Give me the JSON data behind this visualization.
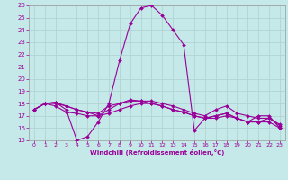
{
  "title": "",
  "xlabel": "Windchill (Refroidissement éolien,°C)",
  "background_color": "#c5e8e8",
  "grid_color": "#b0d4d4",
  "line_color": "#990099",
  "xlim": [
    -0.5,
    23.5
  ],
  "ylim": [
    15,
    26
  ],
  "yticks": [
    15,
    16,
    17,
    18,
    19,
    20,
    21,
    22,
    23,
    24,
    25,
    26
  ],
  "xticks": [
    0,
    1,
    2,
    3,
    4,
    5,
    6,
    7,
    8,
    9,
    10,
    11,
    12,
    13,
    14,
    15,
    16,
    17,
    18,
    19,
    20,
    21,
    22,
    23
  ],
  "series": [
    {
      "x": [
        0,
        1,
        2,
        3,
        4,
        5,
        6,
        7,
        8,
        9,
        10,
        11,
        12,
        13,
        14,
        15,
        16,
        17,
        18,
        19,
        20,
        21,
        22,
        23
      ],
      "y": [
        17.5,
        18.0,
        18.1,
        17.5,
        15.0,
        15.3,
        16.5,
        18.0,
        21.5,
        24.5,
        25.8,
        26.0,
        25.2,
        24.0,
        22.8,
        15.8,
        16.8,
        17.0,
        17.2,
        16.8,
        16.5,
        17.0,
        17.0,
        16.0
      ]
    },
    {
      "x": [
        0,
        1,
        2,
        3,
        4,
        5,
        6,
        7,
        8,
        9,
        10,
        11,
        12,
        13,
        14,
        15,
        16,
        17,
        18,
        19,
        20,
        21,
        22,
        23
      ],
      "y": [
        17.5,
        18.0,
        17.8,
        17.3,
        17.2,
        17.0,
        17.0,
        17.2,
        17.5,
        17.8,
        18.0,
        18.0,
        17.8,
        17.5,
        17.3,
        17.0,
        16.8,
        16.8,
        17.0,
        16.8,
        16.5,
        16.5,
        16.5,
        16.0
      ]
    },
    {
      "x": [
        0,
        1,
        2,
        3,
        4,
        5,
        6,
        7,
        8,
        9,
        10,
        11,
        12,
        13,
        14,
        15,
        16,
        17,
        18,
        19,
        20,
        21,
        22,
        23
      ],
      "y": [
        17.5,
        18.0,
        18.0,
        17.8,
        17.5,
        17.3,
        17.2,
        17.8,
        18.0,
        18.2,
        18.2,
        18.2,
        18.0,
        17.8,
        17.5,
        17.2,
        17.0,
        17.5,
        17.8,
        17.2,
        17.0,
        16.8,
        16.8,
        16.2
      ]
    },
    {
      "x": [
        0,
        1,
        2,
        3,
        4,
        5,
        6,
        7,
        8,
        9,
        10,
        11,
        12,
        13,
        14,
        15,
        16,
        17,
        18,
        19,
        20,
        21,
        22,
        23
      ],
      "y": [
        17.5,
        18.0,
        18.1,
        17.8,
        17.5,
        17.3,
        17.0,
        17.5,
        18.0,
        18.3,
        18.2,
        18.0,
        17.8,
        17.5,
        17.3,
        17.0,
        16.8,
        17.0,
        17.2,
        16.8,
        16.5,
        16.5,
        16.8,
        16.3
      ]
    }
  ]
}
